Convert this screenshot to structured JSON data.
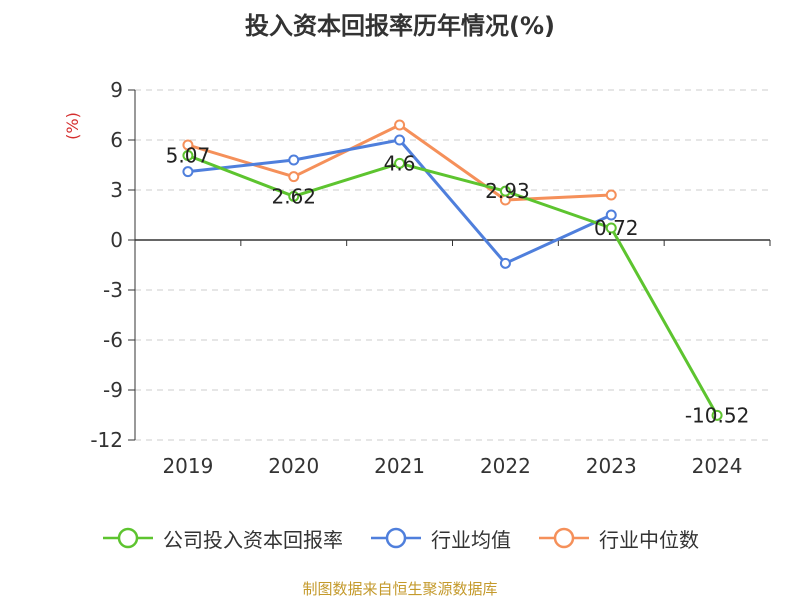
{
  "chart_data": {
    "type": "line",
    "title": "投入资本回报率历年情况(%)",
    "ylabel": "(%)",
    "categories": [
      "2019",
      "2020",
      "2021",
      "2022",
      "2023",
      "2024"
    ],
    "ylim": [
      -12,
      9
    ],
    "yticks": [
      "9",
      "6",
      "3",
      "0",
      "-3",
      "-6",
      "-9",
      "-12"
    ],
    "grid": true,
    "legend_position": "bottom",
    "series": [
      {
        "name": "公司投入资本回报率",
        "color": "#5dc42f",
        "values": [
          5.07,
          2.62,
          4.6,
          2.93,
          0.72,
          -10.52
        ],
        "labels": [
          "5.07",
          "2.62",
          "4.6",
          "2.93",
          "0.72",
          "-10.52"
        ]
      },
      {
        "name": "行业均值",
        "color": "#4f7fdc",
        "values": [
          4.1,
          4.8,
          6.0,
          -1.4,
          1.5,
          null
        ]
      },
      {
        "name": "行业中位数",
        "color": "#f5905a",
        "values": [
          5.7,
          3.8,
          6.9,
          2.4,
          2.7,
          null
        ]
      }
    ]
  },
  "source": "制图数据来自恒生聚源数据库"
}
